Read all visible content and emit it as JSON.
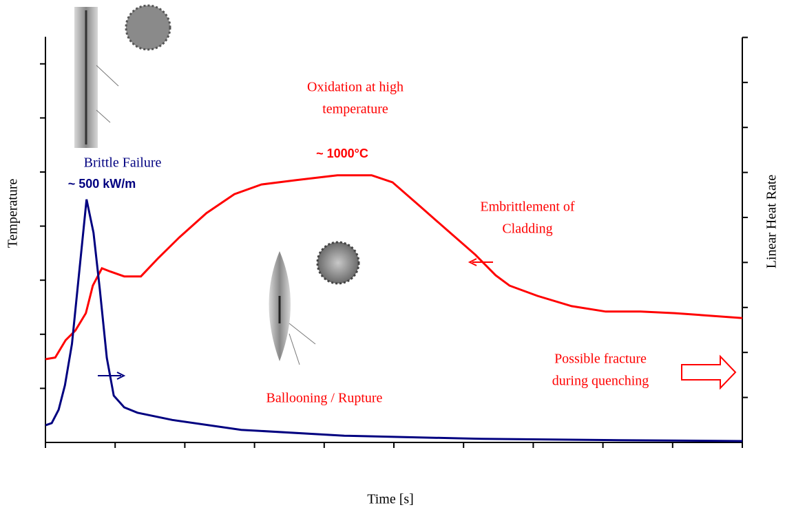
{
  "chart_data": {
    "type": "line",
    "xlabel": "Time [s]",
    "ylabel": "Temperature",
    "y2label": "Linear Heat Rate",
    "xlim": [
      0,
      10
    ],
    "ylim": [
      0,
      7.5
    ],
    "y2lim": [
      0,
      9
    ],
    "series": [
      {
        "color": "#ff0000",
        "axis": "y",
        "x": [
          0,
          0.14,
          0.29,
          0.43,
          0.58,
          0.68,
          0.81,
          0.93,
          1.13,
          1.37,
          1.62,
          1.92,
          2.31,
          2.71,
          3.1,
          3.6,
          4.19,
          4.68,
          4.98,
          5.38,
          5.77,
          6.17,
          6.46,
          6.66,
          7.06,
          7.55,
          8.04,
          8.54,
          9.03,
          10
        ],
        "values": [
          1.54,
          1.57,
          1.89,
          2.07,
          2.39,
          2.9,
          3.22,
          3.16,
          3.07,
          3.07,
          3.41,
          3.79,
          4.24,
          4.59,
          4.77,
          4.85,
          4.94,
          4.94,
          4.81,
          4.36,
          3.92,
          3.47,
          3.09,
          2.9,
          2.71,
          2.52,
          2.42,
          2.42,
          2.39,
          2.3
        ]
      },
      {
        "color": "#000080",
        "axis": "y2",
        "x": [
          0,
          0.09,
          0.19,
          0.28,
          0.38,
          0.48,
          0.59,
          0.69,
          0.78,
          0.88,
          0.98,
          1.13,
          1.32,
          1.82,
          2.81,
          4.29,
          6.26,
          8.24,
          10
        ],
        "values": [
          0.38,
          0.43,
          0.73,
          1.27,
          2.19,
          3.72,
          5.4,
          4.66,
          3.41,
          1.88,
          1.04,
          0.78,
          0.66,
          0.5,
          0.28,
          0.15,
          0.08,
          0.05,
          0.03
        ]
      }
    ],
    "annotations": [
      {
        "lines": [
          "Brittle Failure"
        ],
        "color": "#000080"
      },
      {
        "lines": [
          "~ 500 kW/m"
        ],
        "color": "#000080",
        "bold": true
      },
      {
        "lines": [
          "Oxidation at high",
          "temperature"
        ],
        "color": "#ff0000"
      },
      {
        "lines": [
          "~ 1000°C"
        ],
        "color": "#ff0000",
        "bold": true
      },
      {
        "lines": [
          "Embrittlement of",
          "Cladding"
        ],
        "color": "#ff0000"
      },
      {
        "lines": [
          "Ballooning / Rupture"
        ],
        "color": "#ff0000"
      },
      {
        "lines": [
          "Possible fracture",
          "during quenching"
        ],
        "color": "#ff0000"
      }
    ]
  }
}
